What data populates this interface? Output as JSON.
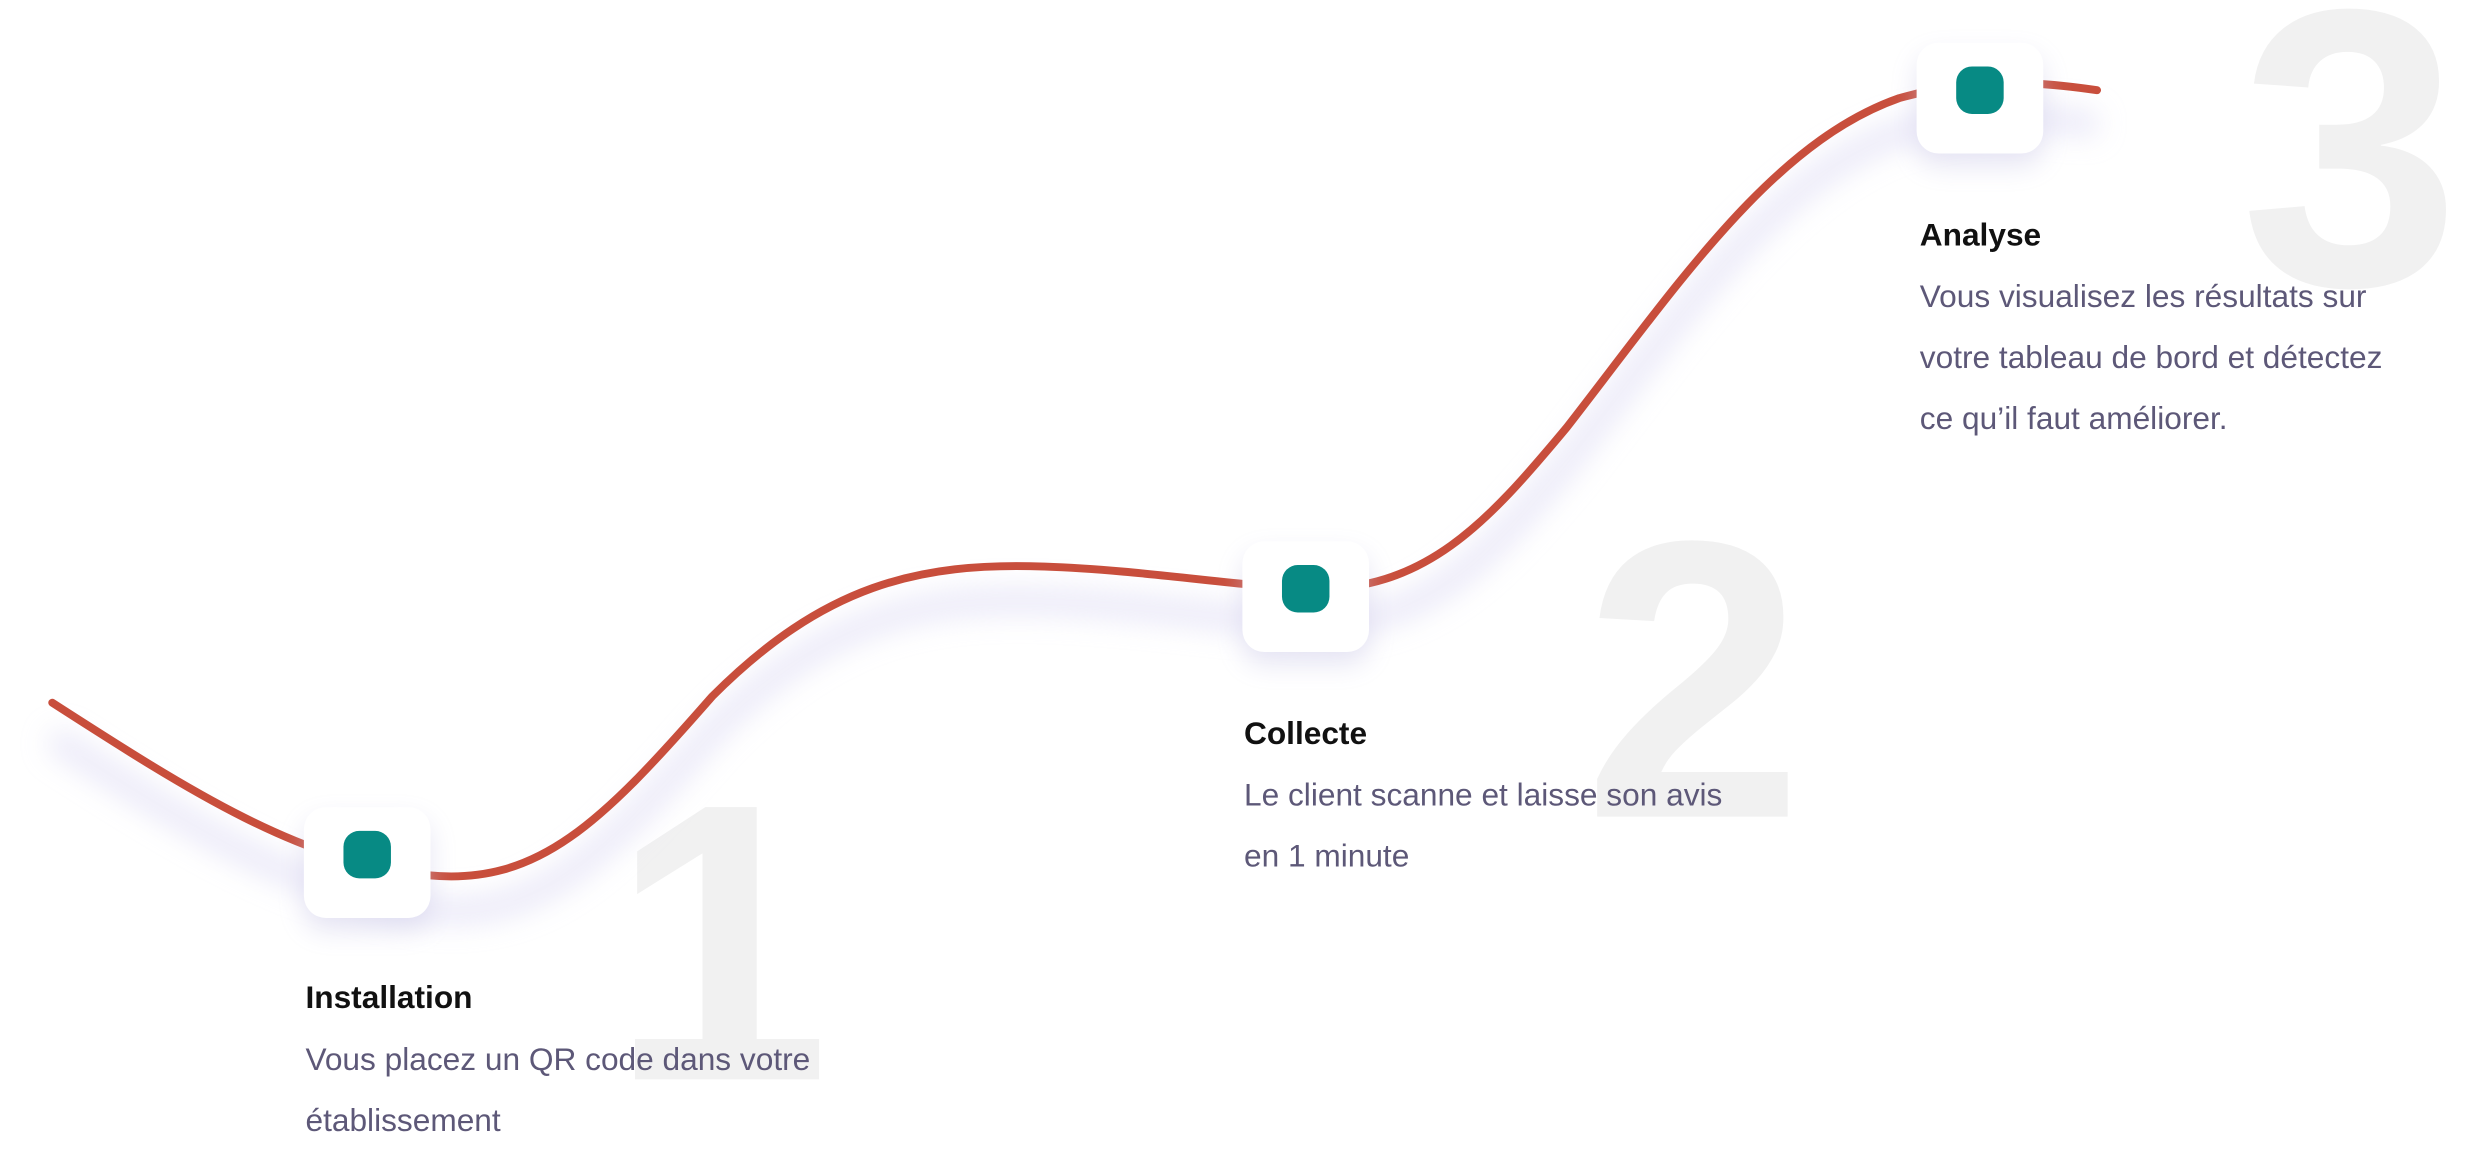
{
  "steps": [
    {
      "number": "1",
      "title": "Installation",
      "lines": [
        "Vous placez un QR code dans votre",
        "établissement"
      ]
    },
    {
      "number": "2",
      "title": "Collecte",
      "lines": [
        "Le client scanne et laisse son avis",
        "en 1 minute"
      ]
    },
    {
      "number": "3",
      "title": "Analyse",
      "lines": [
        "Vous visualisez les résultats sur",
        "votre tableau de bord et détectez",
        "ce qu’il faut améliorer."
      ]
    }
  ]
}
